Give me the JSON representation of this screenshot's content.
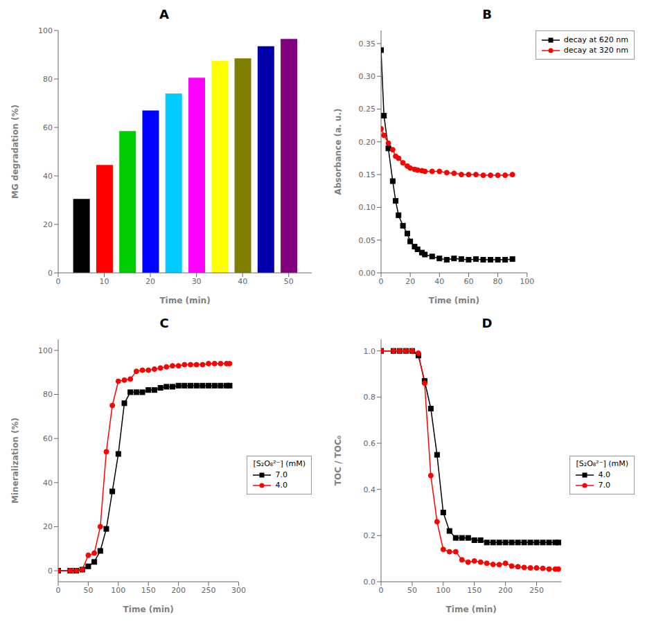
{
  "chart_data": [
    {
      "type": "bar",
      "title": "A",
      "xlabel": "Time (min)",
      "ylabel": "MG degradation (%)",
      "x": [
        5,
        10,
        15,
        20,
        25,
        30,
        35,
        40,
        45,
        50
      ],
      "values": [
        30.5,
        44.5,
        58.5,
        67.0,
        74.0,
        80.5,
        87.5,
        88.5,
        93.5,
        96.5
      ],
      "colors": [
        "#000000",
        "#ff0000",
        "#00cc00",
        "#0000ff",
        "#00ccff",
        "#ff00ff",
        "#ffff00",
        "#808000",
        "#0000aa",
        "#800080"
      ],
      "xlim": [
        0,
        55
      ],
      "ylim": [
        0,
        100
      ],
      "xticks": [
        0,
        10,
        20,
        30,
        40,
        50
      ],
      "yticks": [
        0,
        20,
        40,
        60,
        80,
        100
      ],
      "grid": false
    },
    {
      "type": "line",
      "title": "B",
      "xlabel": "Time (min)",
      "ylabel": "Absorbance (a. u.)",
      "x": [
        0,
        2,
        5,
        8,
        10,
        12,
        15,
        18,
        20,
        23,
        25,
        28,
        30,
        35,
        40,
        45,
        50,
        55,
        60,
        65,
        70,
        75,
        80,
        85,
        90
      ],
      "series": [
        {
          "name": "decay at 620 nm",
          "color": "#000000",
          "marker": "square",
          "values": [
            0.34,
            0.24,
            0.19,
            0.14,
            0.11,
            0.088,
            0.072,
            0.06,
            0.048,
            0.04,
            0.036,
            0.031,
            0.028,
            0.025,
            0.022,
            0.02,
            0.022,
            0.021,
            0.02,
            0.021,
            0.02,
            0.02,
            0.02,
            0.02,
            0.021
          ]
        },
        {
          "name": "decay at 320 nm",
          "color": "#ff0000",
          "marker": "circle",
          "values": [
            0.22,
            0.21,
            0.198,
            0.188,
            0.178,
            0.175,
            0.168,
            0.163,
            0.16,
            0.158,
            0.157,
            0.156,
            0.155,
            0.155,
            0.155,
            0.153,
            0.152,
            0.15,
            0.15,
            0.15,
            0.149,
            0.149,
            0.149,
            0.149,
            0.15
          ]
        }
      ],
      "xlim": [
        0,
        100
      ],
      "ylim": [
        0.0,
        0.37
      ],
      "xticks": [
        0,
        20,
        40,
        60,
        80,
        100
      ],
      "yticks": [
        {
          "value": 0.0,
          "label": "0.00"
        },
        {
          "value": 0.05,
          "label": "0.05"
        },
        {
          "value": 0.1,
          "label": "0.10"
        },
        {
          "value": 0.15,
          "label": "0.15"
        },
        {
          "value": 0.2,
          "label": "0.20"
        },
        {
          "value": 0.25,
          "label": "0.25"
        },
        {
          "value": 0.3,
          "label": "0.30"
        },
        {
          "value": 0.35,
          "label": "0.35"
        }
      ],
      "legend": "upper right",
      "grid": false
    },
    {
      "type": "line",
      "title": "C",
      "xlabel": "Time (min)",
      "ylabel": "Mineralization (%)",
      "x": [
        0,
        20,
        30,
        40,
        50,
        60,
        70,
        80,
        90,
        100,
        110,
        120,
        130,
        140,
        150,
        160,
        170,
        180,
        190,
        200,
        210,
        220,
        230,
        240,
        250,
        260,
        270,
        280,
        285
      ],
      "series": [
        {
          "name": "7.0",
          "color": "#000000",
          "marker": "square",
          "values": [
            0.0,
            0.0,
            0.0,
            0.5,
            2.0,
            4.0,
            9.0,
            19.0,
            36.0,
            53.0,
            76.0,
            81.0,
            81.0,
            81.0,
            82.0,
            82.0,
            83.0,
            83.5,
            83.5,
            84.0,
            84.0,
            84.0,
            84.0,
            84.0,
            84.0,
            84.0,
            84.0,
            84.0,
            84.0
          ]
        },
        {
          "name": "4.0",
          "color": "#ff0000",
          "marker": "circle",
          "values": [
            0.0,
            0.0,
            0.0,
            0.5,
            7.0,
            8.0,
            20.0,
            54.0,
            75.0,
            86.0,
            86.5,
            87.0,
            90.5,
            91.0,
            91.0,
            91.5,
            92.0,
            92.5,
            93.0,
            93.0,
            93.5,
            93.5,
            93.5,
            93.5,
            94.0,
            94.0,
            94.0,
            94.0,
            94.0
          ]
        }
      ],
      "xlim": [
        0,
        300
      ],
      "ylim": [
        -5,
        105
      ],
      "xticks": [
        0,
        50,
        100,
        150,
        200,
        250,
        300
      ],
      "yticks": [
        0,
        20,
        40,
        60,
        80,
        100
      ],
      "legend": "center right",
      "legend_title": "[S₂O₈²⁻] (mM)",
      "grid": false
    },
    {
      "type": "line",
      "title": "D",
      "xlabel": "Time (min)",
      "ylabel": "TOC / TOC₀",
      "x": [
        0,
        20,
        30,
        40,
        50,
        60,
        70,
        80,
        90,
        100,
        110,
        120,
        130,
        140,
        150,
        160,
        170,
        180,
        190,
        200,
        210,
        220,
        230,
        240,
        250,
        260,
        270,
        280,
        285
      ],
      "series": [
        {
          "name": "4.0",
          "color": "#000000",
          "marker": "square",
          "values": [
            1.0,
            1.0,
            1.0,
            1.0,
            1.0,
            0.98,
            0.87,
            0.75,
            0.55,
            0.3,
            0.22,
            0.19,
            0.19,
            0.19,
            0.18,
            0.18,
            0.17,
            0.17,
            0.17,
            0.17,
            0.17,
            0.17,
            0.17,
            0.17,
            0.17,
            0.17,
            0.17,
            0.17,
            0.17
          ]
        },
        {
          "name": "7.0",
          "color": "#ff0000",
          "marker": "circle",
          "values": [
            1.0,
            1.0,
            1.0,
            1.0,
            1.0,
            0.99,
            0.86,
            0.46,
            0.26,
            0.14,
            0.13,
            0.13,
            0.095,
            0.085,
            0.09,
            0.085,
            0.08,
            0.075,
            0.074,
            0.08,
            0.068,
            0.065,
            0.062,
            0.06,
            0.06,
            0.058,
            0.055,
            0.055,
            0.055
          ]
        }
      ],
      "xlim": [
        0,
        290
      ],
      "ylim": [
        0.0,
        1.05
      ],
      "xticks": [
        0,
        50,
        100,
        150,
        200,
        250
      ],
      "yticks": [
        {
          "value": 0.0,
          "label": "0.0"
        },
        {
          "value": 0.2,
          "label": "0.2"
        },
        {
          "value": 0.4,
          "label": "0.4"
        },
        {
          "value": 0.6,
          "label": "0.6"
        },
        {
          "value": 0.8,
          "label": "0.8"
        },
        {
          "value": 1.0,
          "label": "1.0"
        }
      ],
      "legend": "center right",
      "legend_title": "[S₂O₈²⁻] (mM)",
      "grid": false
    }
  ]
}
